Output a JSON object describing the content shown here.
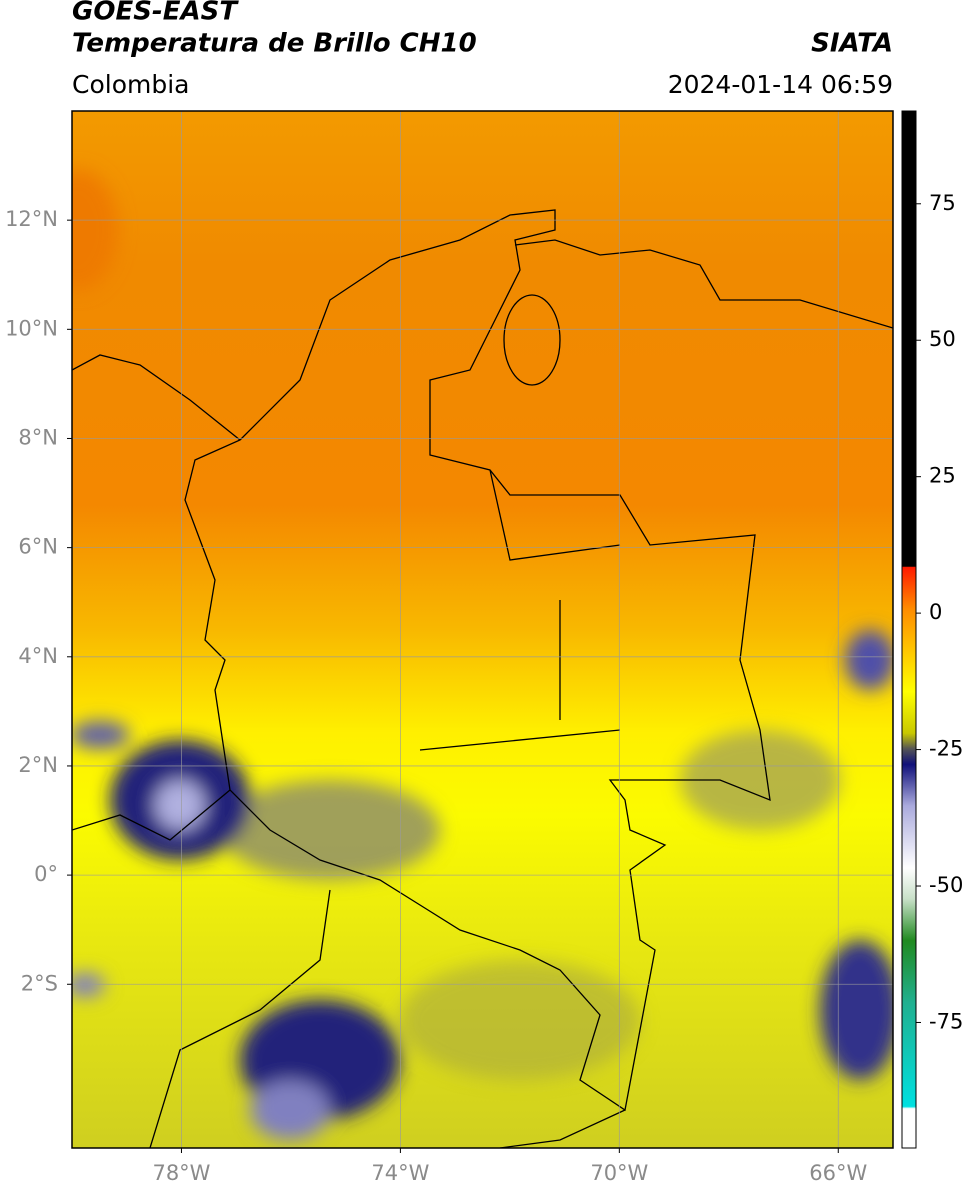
{
  "header": {
    "title": "GOES-EAST",
    "subtitle": "Temperatura de Brillo CH10",
    "source": "SIATA",
    "region": "Colombia",
    "datetime": "2024-01-14 06:59"
  },
  "map": {
    "lonlim": [
      -80,
      -65
    ],
    "latlim": [
      -5,
      14
    ],
    "lon_ticks": [
      {
        "value": -78,
        "label": "78°W"
      },
      {
        "value": -74,
        "label": "74°W"
      },
      {
        "value": -70,
        "label": "70°W"
      },
      {
        "value": -66,
        "label": "66°W"
      }
    ],
    "lat_ticks": [
      {
        "value": 12,
        "label": "12°N"
      },
      {
        "value": 10,
        "label": "10°N"
      },
      {
        "value": 8,
        "label": "8°N"
      },
      {
        "value": 6,
        "label": "6°N"
      },
      {
        "value": 4,
        "label": "4°N"
      },
      {
        "value": 2,
        "label": "2°N"
      },
      {
        "value": 0,
        "label": "0°"
      },
      {
        "value": -2,
        "label": "2°S"
      }
    ]
  },
  "colorbar": {
    "lim": [
      -98,
      92
    ],
    "ticks": [
      75,
      50,
      25,
      0,
      -25,
      -50,
      -75
    ]
  }
}
